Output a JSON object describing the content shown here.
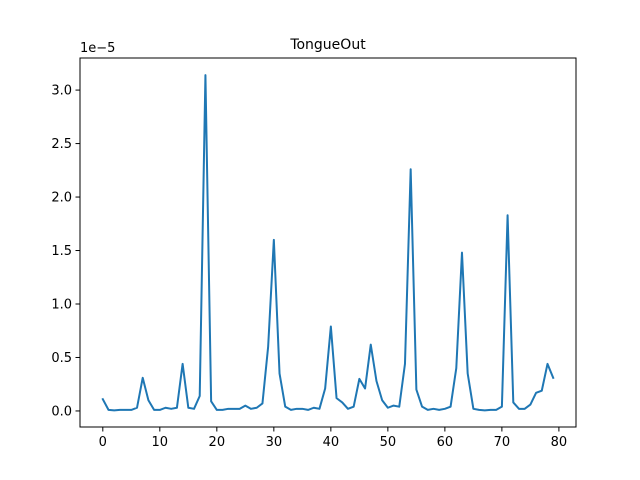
{
  "chart_data": {
    "type": "line",
    "title": "TongueOut",
    "xlabel": "",
    "ylabel": "",
    "y_offset_label": "1e−5",
    "xlim": [
      -4,
      83
    ],
    "ylim": [
      -0.15,
      3.3
    ],
    "x_ticks": [
      0,
      10,
      20,
      30,
      40,
      50,
      60,
      70,
      80
    ],
    "x_tick_labels": [
      "0",
      "10",
      "20",
      "30",
      "40",
      "50",
      "60",
      "70",
      "80"
    ],
    "y_ticks": [
      0.0,
      0.5,
      1.0,
      1.5,
      2.0,
      2.5,
      3.0
    ],
    "y_tick_labels": [
      "0.0",
      "0.5",
      "1.0",
      "1.5",
      "2.0",
      "2.5",
      "3.0"
    ],
    "grid": false,
    "legend": "none",
    "line_color": "#1f77b4",
    "series": [
      {
        "x": [
          0,
          1,
          2,
          3,
          4,
          5,
          6,
          7,
          8,
          9,
          10,
          11,
          12,
          13,
          14,
          15,
          16,
          17,
          18,
          19,
          20,
          21,
          22,
          23,
          24,
          25,
          26,
          27,
          28,
          29,
          30,
          31,
          32,
          33,
          34,
          35,
          36,
          37,
          38,
          39,
          40,
          41,
          42,
          43,
          44,
          45,
          46,
          47,
          48,
          49,
          50,
          51,
          52,
          53,
          54,
          55,
          56,
          57,
          58,
          59,
          60,
          61,
          62,
          63,
          64,
          65,
          66,
          67,
          68,
          69,
          70,
          71,
          72,
          73,
          74,
          75,
          76,
          77,
          78,
          79
        ],
        "values": [
          0.11,
          0.01,
          0.005,
          0.01,
          0.01,
          0.01,
          0.03,
          0.31,
          0.1,
          0.01,
          0.01,
          0.03,
          0.02,
          0.03,
          0.44,
          0.03,
          0.02,
          0.14,
          3.14,
          0.09,
          0.01,
          0.01,
          0.02,
          0.02,
          0.02,
          0.05,
          0.02,
          0.03,
          0.07,
          0.6,
          1.6,
          0.35,
          0.04,
          0.01,
          0.02,
          0.02,
          0.01,
          0.03,
          0.02,
          0.21,
          0.79,
          0.12,
          0.08,
          0.02,
          0.04,
          0.3,
          0.21,
          0.62,
          0.28,
          0.1,
          0.03,
          0.05,
          0.04,
          0.44,
          2.26,
          0.2,
          0.04,
          0.01,
          0.02,
          0.01,
          0.02,
          0.04,
          0.4,
          1.48,
          0.35,
          0.02,
          0.01,
          0.005,
          0.01,
          0.01,
          0.04,
          1.83,
          0.08,
          0.02,
          0.02,
          0.06,
          0.17,
          0.19,
          0.44,
          0.31
        ]
      }
    ]
  }
}
